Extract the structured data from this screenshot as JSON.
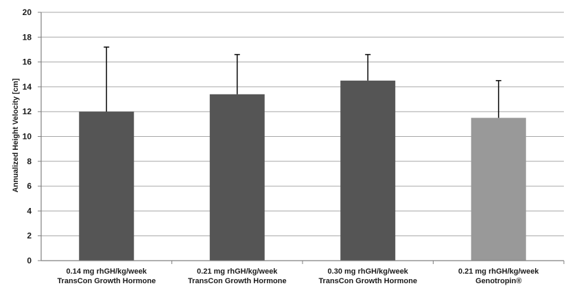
{
  "chart_data": {
    "type": "bar",
    "title": "",
    "xlabel": "",
    "ylabel": "Annualized Height Velocity [cm]",
    "ylim": [
      0,
      20
    ],
    "yticks": [
      0,
      2,
      4,
      6,
      8,
      10,
      12,
      14,
      16,
      18,
      20
    ],
    "grid": true,
    "categories": [
      [
        "0.14 mg rhGH/kg/week",
        "TransCon Growth Hormone"
      ],
      [
        "0.21 mg rhGH/kg/week",
        "TransCon Growth Hormone"
      ],
      [
        "0.30 mg rhGH/kg/week",
        "TransCon Growth Hormone"
      ],
      [
        "0.21 mg rhGH/kg/week",
        "Genotropin®"
      ]
    ],
    "values": [
      12.0,
      13.4,
      14.5,
      11.5
    ],
    "error_upper": [
      5.2,
      3.2,
      2.1,
      3.0
    ],
    "colors": [
      "#555555",
      "#555555",
      "#555555",
      "#999999"
    ]
  }
}
